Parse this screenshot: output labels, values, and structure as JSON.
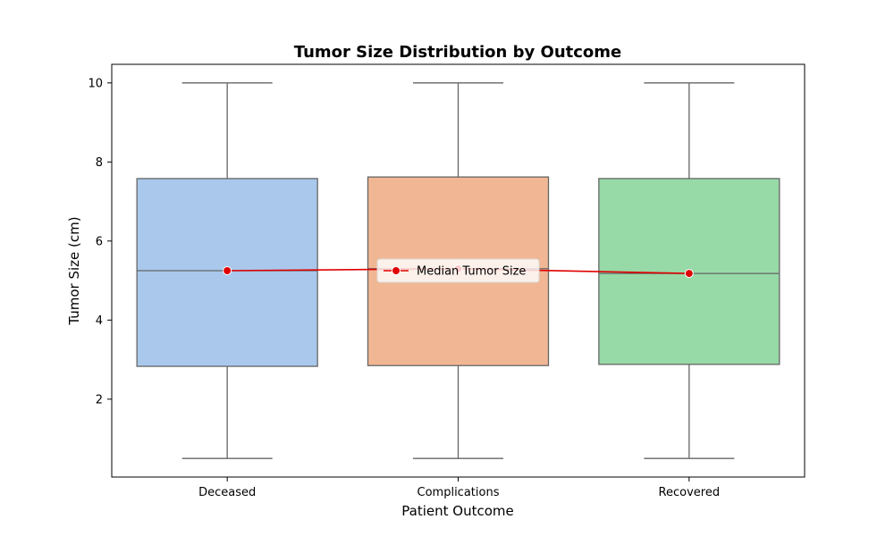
{
  "chart_data": {
    "type": "box",
    "title": "Tumor Size Distribution by Outcome",
    "xlabel": "Patient Outcome",
    "ylabel": "Tumor Size (cm)",
    "categories": [
      "Deceased",
      "Complications",
      "Recovered"
    ],
    "boxes": [
      {
        "category": "Deceased",
        "min": 0.5,
        "q1": 2.83,
        "median": 5.25,
        "q3": 7.58,
        "max": 10.0,
        "color": "#a9c8ec"
      },
      {
        "category": "Complications",
        "min": 0.5,
        "q1": 2.85,
        "median": 5.3,
        "q3": 7.62,
        "max": 10.0,
        "color": "#f1b794"
      },
      {
        "category": "Recovered",
        "min": 0.5,
        "q1": 2.88,
        "median": 5.18,
        "q3": 7.58,
        "max": 10.0,
        "color": "#97d9a7"
      }
    ],
    "median_line": {
      "name": "Median Tumor Size",
      "values": [
        5.25,
        5.3,
        5.18
      ],
      "color": "#e00000"
    },
    "yticks": [
      2,
      4,
      6,
      8,
      10
    ],
    "ylim": [
      0.03,
      10.47
    ],
    "grid": false,
    "legend": {
      "placement": "center"
    },
    "colors": {
      "box_edge": "#666666",
      "axis": "#000000"
    }
  }
}
